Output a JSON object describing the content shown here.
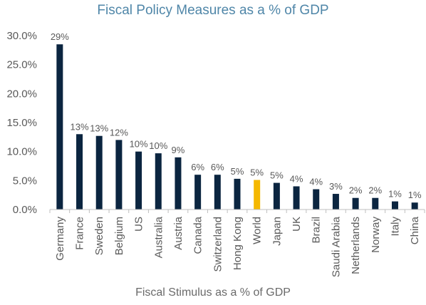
{
  "chart_data": {
    "type": "bar",
    "title": "Fiscal Policy Measures as a % of GDP",
    "xlabel": "Fiscal Stimulus as a % of GDP",
    "ylabel": "",
    "ylim": [
      0,
      30
    ],
    "yticks": [
      "0.0%",
      "5.0%",
      "10.0%",
      "15.0%",
      "20.0%",
      "25.0%",
      "30.0%"
    ],
    "grid": false,
    "categories": [
      "Germany",
      "France",
      "Sweden",
      "Belgium",
      "US",
      "Australia",
      "Austria",
      "Canada",
      "Switzerland",
      "Hong Kong",
      "World",
      "Japan",
      "UK",
      "Brazil",
      "Saudi Arabia",
      "Netherlands",
      "Norway",
      "Italy",
      "China"
    ],
    "values": [
      28.5,
      13.0,
      12.7,
      12.0,
      10.0,
      9.7,
      9.0,
      6.0,
      6.0,
      5.3,
      5.1,
      4.6,
      4.0,
      3.5,
      2.7,
      2.0,
      2.0,
      1.4,
      1.2
    ],
    "data_labels": [
      "29%",
      "13%",
      "13%",
      "12%",
      "10%",
      "10%",
      "9%",
      "6%",
      "6%",
      "5%",
      "5%",
      "5%",
      "4%",
      "4%",
      "3%",
      "2%",
      "2%",
      "1%",
      "1%"
    ],
    "highlight_category": "World",
    "colors": {
      "bar": "#0b2540",
      "highlight": "#f5b800",
      "axis": "#bfbfbf",
      "title": "#4f86a8"
    }
  }
}
